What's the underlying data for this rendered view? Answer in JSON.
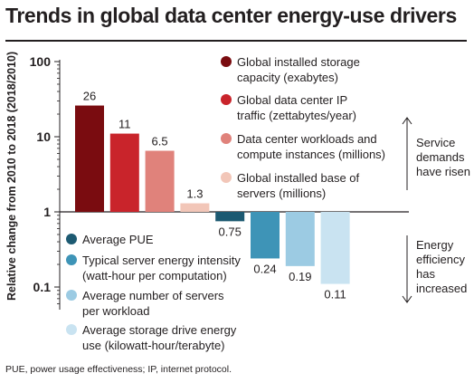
{
  "header": {
    "title": "Trends in global data center energy-use drivers",
    "footnote": "PUE, power usage effectiveness; IP, internet protocol."
  },
  "chart_data": {
    "type": "bar",
    "title": "Trends in global data center energy-use drivers",
    "ylabel": "Relative change from 2010 to 2018 (2018/2010)",
    "yscale": "log",
    "ylim": [
      0.05,
      100
    ],
    "yticks": [
      {
        "value": 100,
        "label": "100"
      },
      {
        "value": 10,
        "label": "10"
      },
      {
        "value": 1,
        "label": "1"
      },
      {
        "value": 0.1,
        "label": "0.1"
      }
    ],
    "baseline": 1,
    "series": [
      {
        "name": "Global installed storage capacity (exabytes)",
        "value": 26,
        "label": "26",
        "color": "#7a0c10",
        "group": "demand"
      },
      {
        "name": "Global data center IP traffic (zettabytes/year)",
        "value": 11,
        "label": "11",
        "color": "#c9242b",
        "group": "demand"
      },
      {
        "name": "Data center workloads and compute instances (millions)",
        "value": 6.5,
        "label": "6.5",
        "color": "#e0827b",
        "group": "demand"
      },
      {
        "name": "Global installed base of servers (millions)",
        "value": 1.3,
        "label": "1.3",
        "color": "#f2c6b8",
        "group": "demand"
      },
      {
        "name": "Average PUE",
        "value": 0.75,
        "label": "0.75",
        "color": "#1d5a72",
        "group": "efficiency"
      },
      {
        "name": "Typical server energy intensity (watt-hour per computation)",
        "value": 0.24,
        "label": "0.24",
        "color": "#3e94b7",
        "group": "efficiency"
      },
      {
        "name": "Average number of servers per workload",
        "value": 0.19,
        "label": "0.19",
        "color": "#9ccbe3",
        "group": "efficiency"
      },
      {
        "name": "Average storage drive energy use (kilowatt-hour/terabyte)",
        "value": 0.11,
        "label": "0.11",
        "color": "#c9e3f1",
        "group": "efficiency"
      }
    ],
    "legend": {
      "demand": [
        [
          "Global installed storage",
          "capacity (exabytes)"
        ],
        [
          "Global data center IP",
          "traffic (zettabytes/year)"
        ],
        [
          "Data center workloads and",
          "compute instances (millions)"
        ],
        [
          "Global installed base of",
          "servers (millions)"
        ]
      ],
      "efficiency": [
        [
          "Average PUE"
        ],
        [
          "Typical server energy intensity",
          "(watt-hour per computation)"
        ],
        [
          "Average number of servers",
          "per workload"
        ],
        [
          "Average storage drive energy",
          "use (kilowatt-hour/terabyte)"
        ]
      ]
    },
    "annotations": {
      "demand": [
        "Service",
        "demands",
        "have risen"
      ],
      "efficiency": [
        "Energy",
        "efficiency",
        "has",
        "increased"
      ]
    }
  }
}
